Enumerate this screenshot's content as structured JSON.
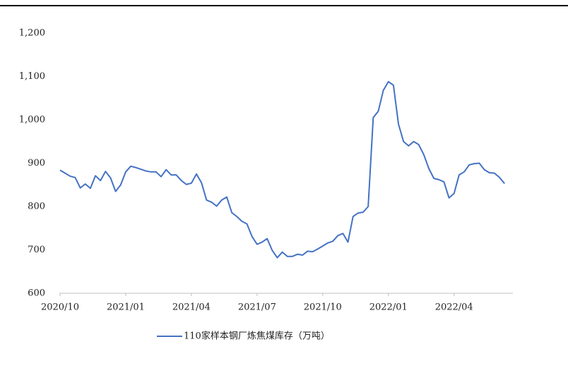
{
  "chart_data": {
    "type": "line",
    "categories": [
      "2020/10",
      null,
      null,
      null,
      null,
      null,
      null,
      null,
      null,
      null,
      null,
      null,
      null,
      "2021/01",
      null,
      null,
      null,
      null,
      null,
      null,
      null,
      null,
      null,
      null,
      null,
      null,
      "2021/04",
      null,
      null,
      null,
      null,
      null,
      null,
      null,
      null,
      null,
      null,
      null,
      null,
      "2021/07",
      null,
      null,
      null,
      null,
      null,
      null,
      null,
      null,
      null,
      null,
      null,
      null,
      "2021/10",
      null,
      null,
      null,
      null,
      null,
      null,
      null,
      null,
      null,
      null,
      null,
      null,
      "2022/01",
      null,
      null,
      null,
      null,
      null,
      null,
      null,
      null,
      null,
      null,
      null,
      null,
      "2022/04",
      null,
      null,
      null,
      null,
      null,
      null,
      null,
      null,
      null,
      null
    ],
    "series": [
      {
        "name": "110家样本钢厂炼焦煤库存（万吨）",
        "color": "#4472c4",
        "values": [
          884,
          877,
          870,
          867,
          843,
          852,
          842,
          871,
          860,
          881,
          866,
          835,
          850,
          880,
          893,
          890,
          886,
          882,
          880,
          880,
          869,
          885,
          873,
          873,
          860,
          851,
          854,
          875,
          855,
          815,
          810,
          801,
          815,
          822,
          786,
          777,
          766,
          760,
          731,
          713,
          718,
          726,
          699,
          682,
          695,
          685,
          685,
          690,
          688,
          697,
          696,
          702,
          709,
          716,
          720,
          733,
          738,
          718,
          777,
          785,
          787,
          800,
          1005,
          1020,
          1068,
          1088,
          1080,
          990,
          950,
          940,
          950,
          943,
          920,
          888,
          865,
          862,
          857,
          820,
          830,
          873,
          880,
          896,
          899,
          900,
          885,
          878,
          877,
          867,
          853
        ]
      }
    ],
    "ylim": [
      600,
      1200
    ],
    "yticks": [
      600,
      700,
      800,
      900,
      {
        "value": 1000,
        "label": "1,000"
      },
      {
        "value": 1100,
        "label": "1,100"
      },
      {
        "value": 1200,
        "label": "1,200"
      }
    ],
    "grid": false,
    "legend": "bottom"
  }
}
